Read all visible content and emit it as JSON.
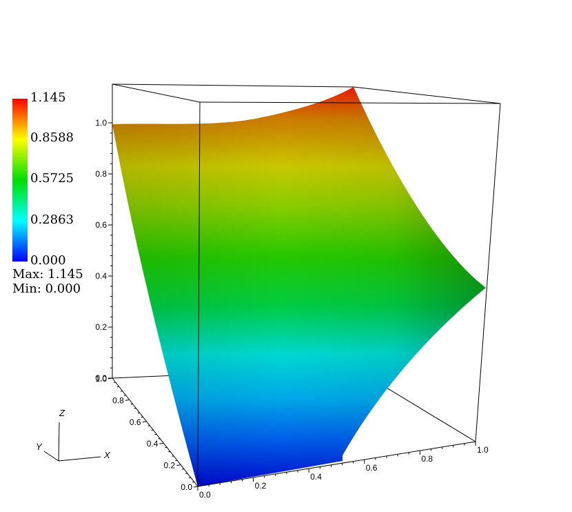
{
  "chart_data": {
    "type": "surface",
    "colorbar": {
      "max": 1.145,
      "min": 0.0,
      "labels": [
        "1.145",
        "0.8588",
        "0.5725",
        "0.2863",
        "0.000"
      ],
      "colors": [
        "#ff0000",
        "#ffff00",
        "#00dd00",
        "#00ffff",
        "#0000ff"
      ]
    },
    "max_label": "Max:",
    "max_value": "1.145",
    "min_label": "Min:",
    "min_value": "0.000",
    "axes": {
      "x": {
        "letter": "X",
        "range": [
          0.0,
          1.0
        ],
        "ticks": [
          "0.0",
          "0.2",
          "0.4",
          "0.6",
          "0.8",
          "1.0"
        ]
      },
      "y": {
        "letter": "Y",
        "range": [
          0.0,
          1.0
        ],
        "ticks": [
          "0.0",
          "0.2",
          "0.4",
          "0.6",
          "0.8",
          "1.0"
        ]
      },
      "z": {
        "letter": "Z",
        "range": [
          0.0,
          1.0
        ],
        "ticks": [
          "0.0",
          "0.2",
          "0.4",
          "0.6",
          "0.8",
          "1.0"
        ]
      }
    },
    "surface": {
      "corner_values": {
        "x0_y0": 0.0,
        "x1_y0": 0.375,
        "x0_y1": 1.0,
        "x1_y1": 1.145
      },
      "z_range": [
        0.0,
        1.145
      ]
    }
  }
}
